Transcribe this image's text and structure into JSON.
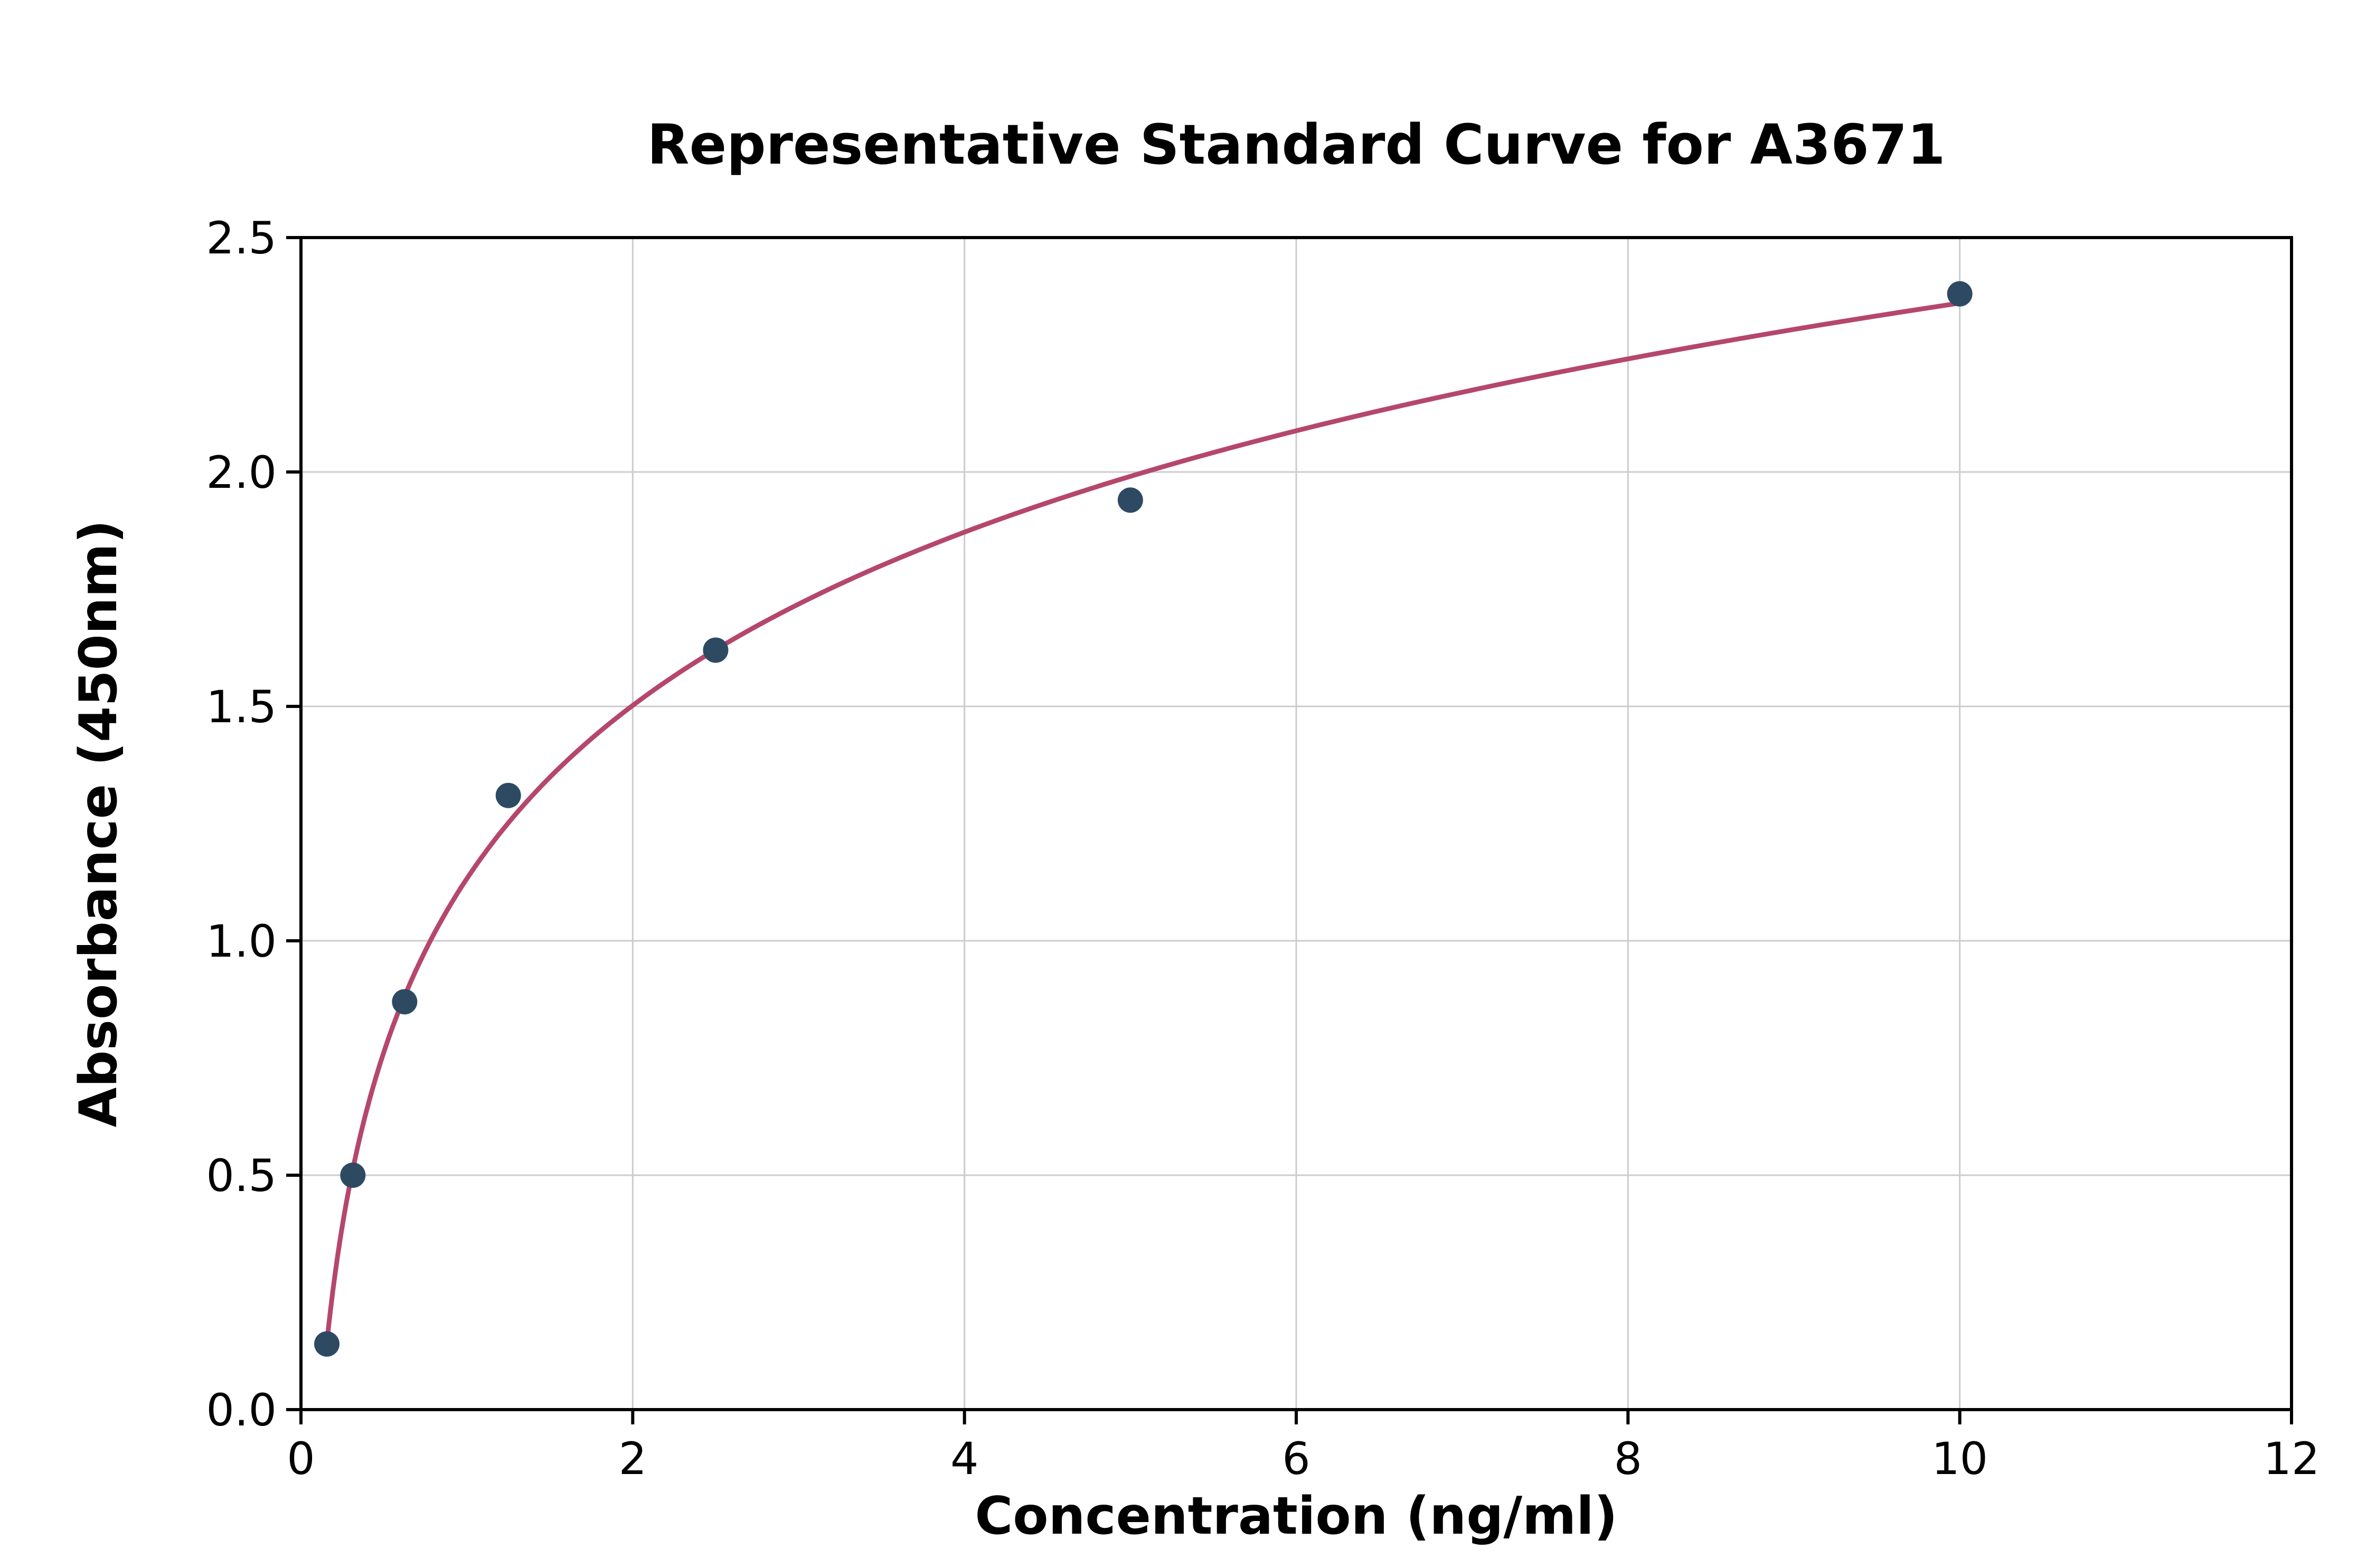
{
  "chart_data": {
    "type": "scatter",
    "title": "Representative Standard Curve for A3671",
    "xlabel": "Concentration (ng/ml)",
    "ylabel": "Absorbance (450nm)",
    "x": [
      0.156,
      0.313,
      0.625,
      1.25,
      2.5,
      5,
      10
    ],
    "y": [
      0.14,
      0.5,
      0.87,
      1.31,
      1.62,
      1.94,
      2.38
    ],
    "xlim": [
      0,
      12
    ],
    "ylim": [
      0,
      2.5
    ],
    "x_ticks": [
      0,
      2,
      4,
      6,
      8,
      10,
      12
    ],
    "y_ticks": [
      0.0,
      0.5,
      1.0,
      1.5,
      2.0,
      2.5
    ],
    "grid": true,
    "fit": "logarithmic",
    "legend": "none",
    "colors": {
      "curve": "#b5476b",
      "marker": "#2e4a63",
      "grid": "#cccccc",
      "spine": "#000000",
      "background": "#ffffff"
    }
  }
}
